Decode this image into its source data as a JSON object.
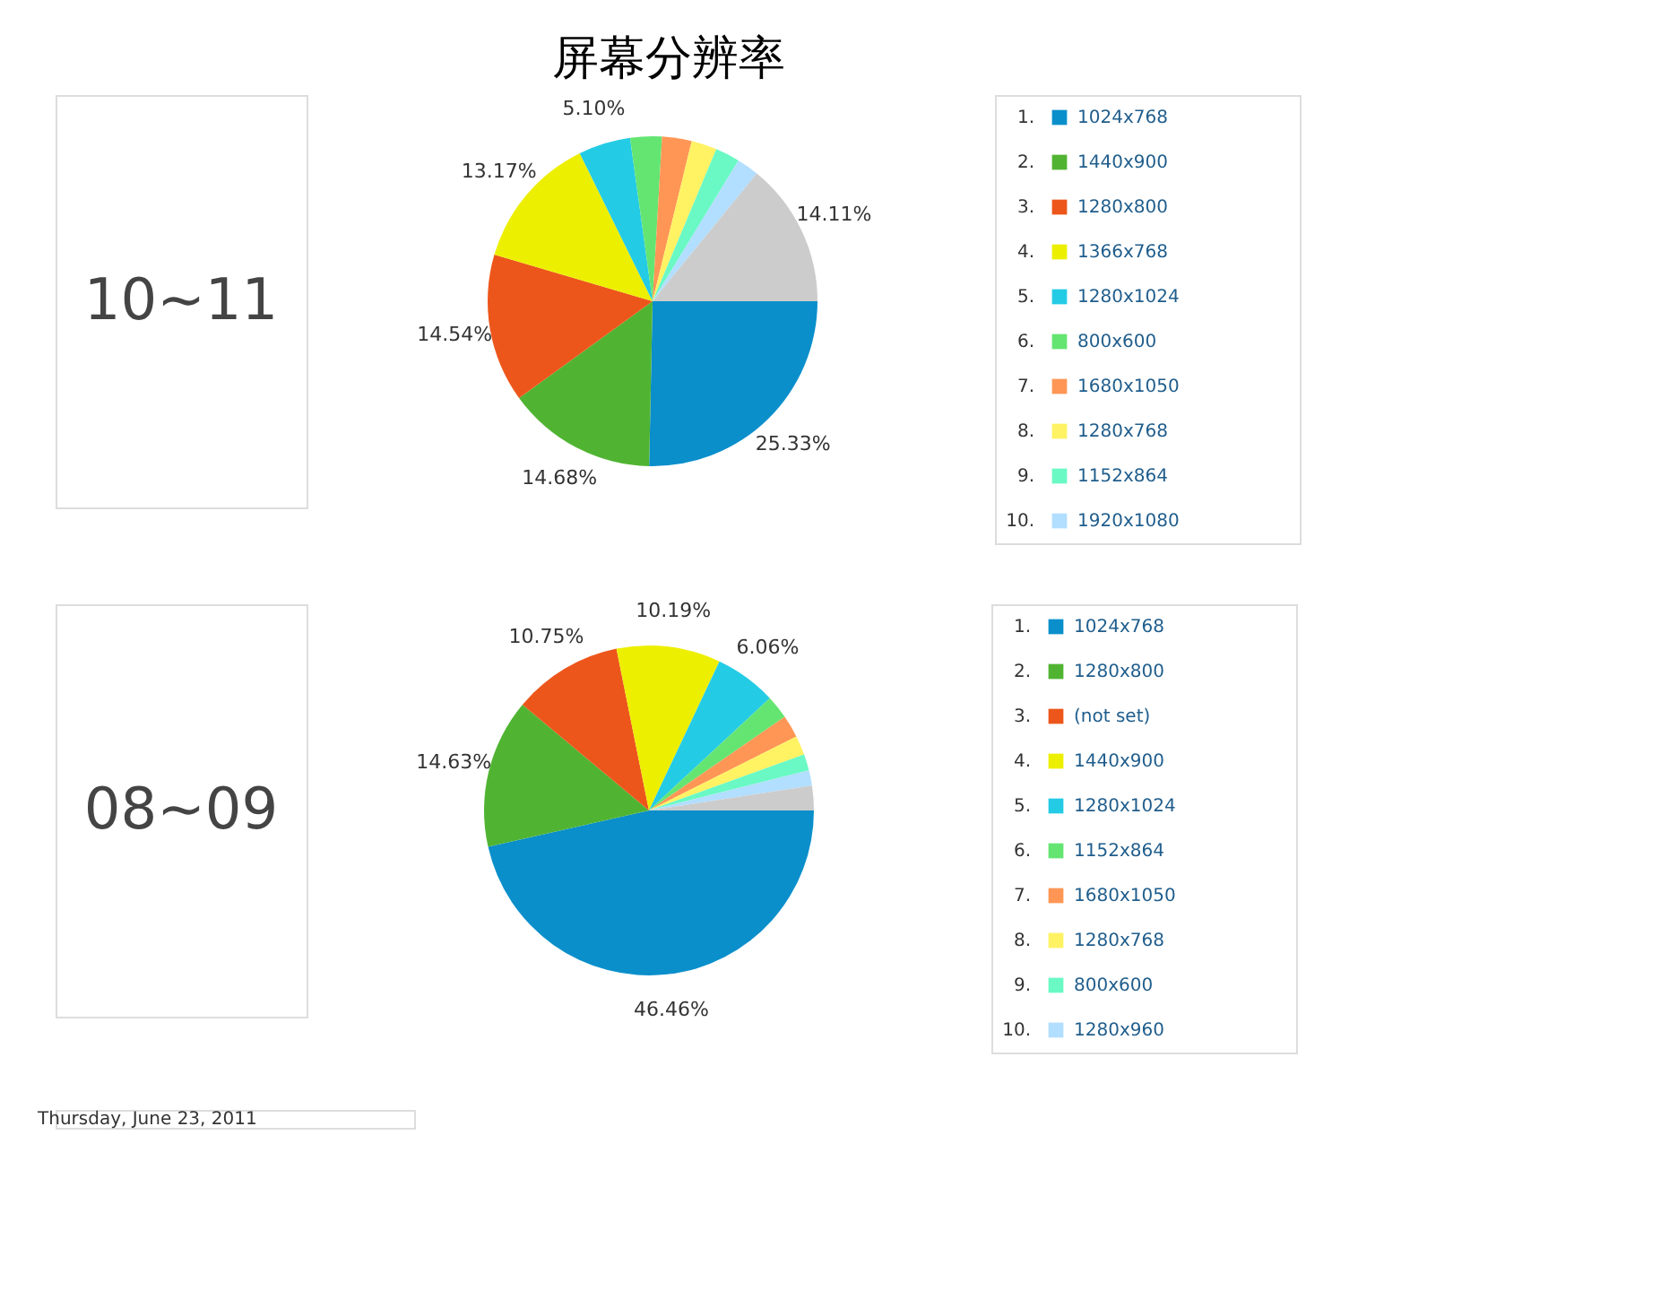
{
  "chart_data": [
    {
      "type": "pie",
      "title": "屏幕分辨率",
      "subtitle": "10~11",
      "legend": "right",
      "categories": [
        "1024x768",
        "1440x900",
        "1280x800",
        "1366x768",
        "1280x1024",
        "800x600",
        "1680x1050",
        "1280x768",
        "1152x864",
        "1920x1080",
        null
      ],
      "values": [
        25.33,
        14.68,
        14.54,
        13.17,
        5.1,
        3.1,
        2.9,
        2.5,
        2.4,
        2.17,
        14.11
      ],
      "value_labels": [
        "25.33%",
        "14.68%",
        "14.54%",
        "13.17%",
        "5.10%",
        null,
        null,
        null,
        null,
        null,
        "14.11%"
      ],
      "colors": [
        "#0a8fcb",
        "#50b432",
        "#ed561b",
        "#edef00",
        "#24cbe5",
        "#64e572",
        "#ff9655",
        "#fff263",
        "#6af9c4",
        "#b2deff",
        "#cccccc"
      ],
      "annotations": [
        "1.",
        "2.",
        "3.",
        "4.",
        "5.",
        "6.",
        "7.",
        "8.",
        "9.",
        "10."
      ]
    },
    {
      "type": "pie",
      "subtitle": "08~09",
      "legend": "right",
      "categories": [
        "1024x768",
        "1280x800",
        "(not set)",
        "1440x900",
        "1280x1024",
        "1152x864",
        "1680x1050",
        "1280x768",
        "800x600",
        "1280x960",
        null
      ],
      "values": [
        46.46,
        14.63,
        10.75,
        10.19,
        6.06,
        2.3,
        2.2,
        1.9,
        1.6,
        1.5,
        2.41
      ],
      "value_labels": [
        "46.46%",
        "14.63%",
        "10.75%",
        "10.19%",
        "6.06%",
        null,
        null,
        null,
        null,
        null,
        null
      ],
      "colors": [
        "#0a8fcb",
        "#50b432",
        "#ed561b",
        "#edef00",
        "#24cbe5",
        "#64e572",
        "#ff9655",
        "#fff263",
        "#6af9c4",
        "#b2deff",
        "#cccccc"
      ],
      "annotations": [
        "1.",
        "2.",
        "3.",
        "4.",
        "5.",
        "6.",
        "7.",
        "8.",
        "9.",
        "10.",
        "Thursday, June 23, 2011"
      ]
    }
  ]
}
